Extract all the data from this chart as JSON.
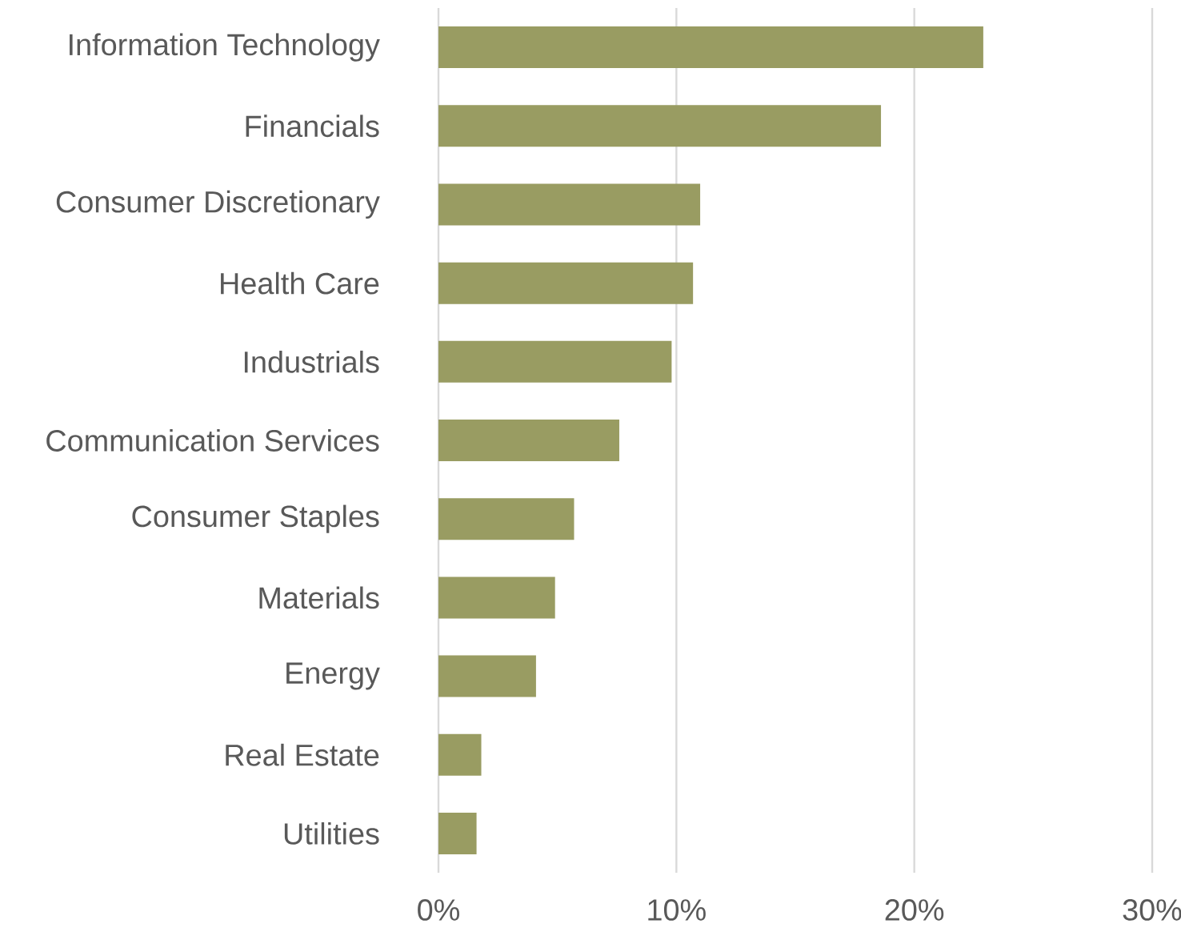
{
  "chart_data": {
    "type": "bar",
    "orientation": "horizontal",
    "categories": [
      "Information Technology",
      "Financials",
      "Consumer Discretionary",
      "Health Care",
      "Industrials",
      "Communication Services",
      "Consumer Staples",
      "Materials",
      "Energy",
      "Real Estate",
      "Utilities"
    ],
    "values": [
      22.9,
      18.6,
      11.0,
      10.7,
      9.8,
      7.6,
      5.7,
      4.9,
      4.1,
      1.8,
      1.6
    ],
    "color": "#999c62",
    "xlim": [
      0,
      30
    ],
    "xticks": [
      {
        "value": 0,
        "label": "0%"
      },
      {
        "value": 10,
        "label": "10%"
      },
      {
        "value": 20,
        "label": "20%"
      },
      {
        "value": 30,
        "label": "30%"
      }
    ],
    "grid": "x"
  }
}
